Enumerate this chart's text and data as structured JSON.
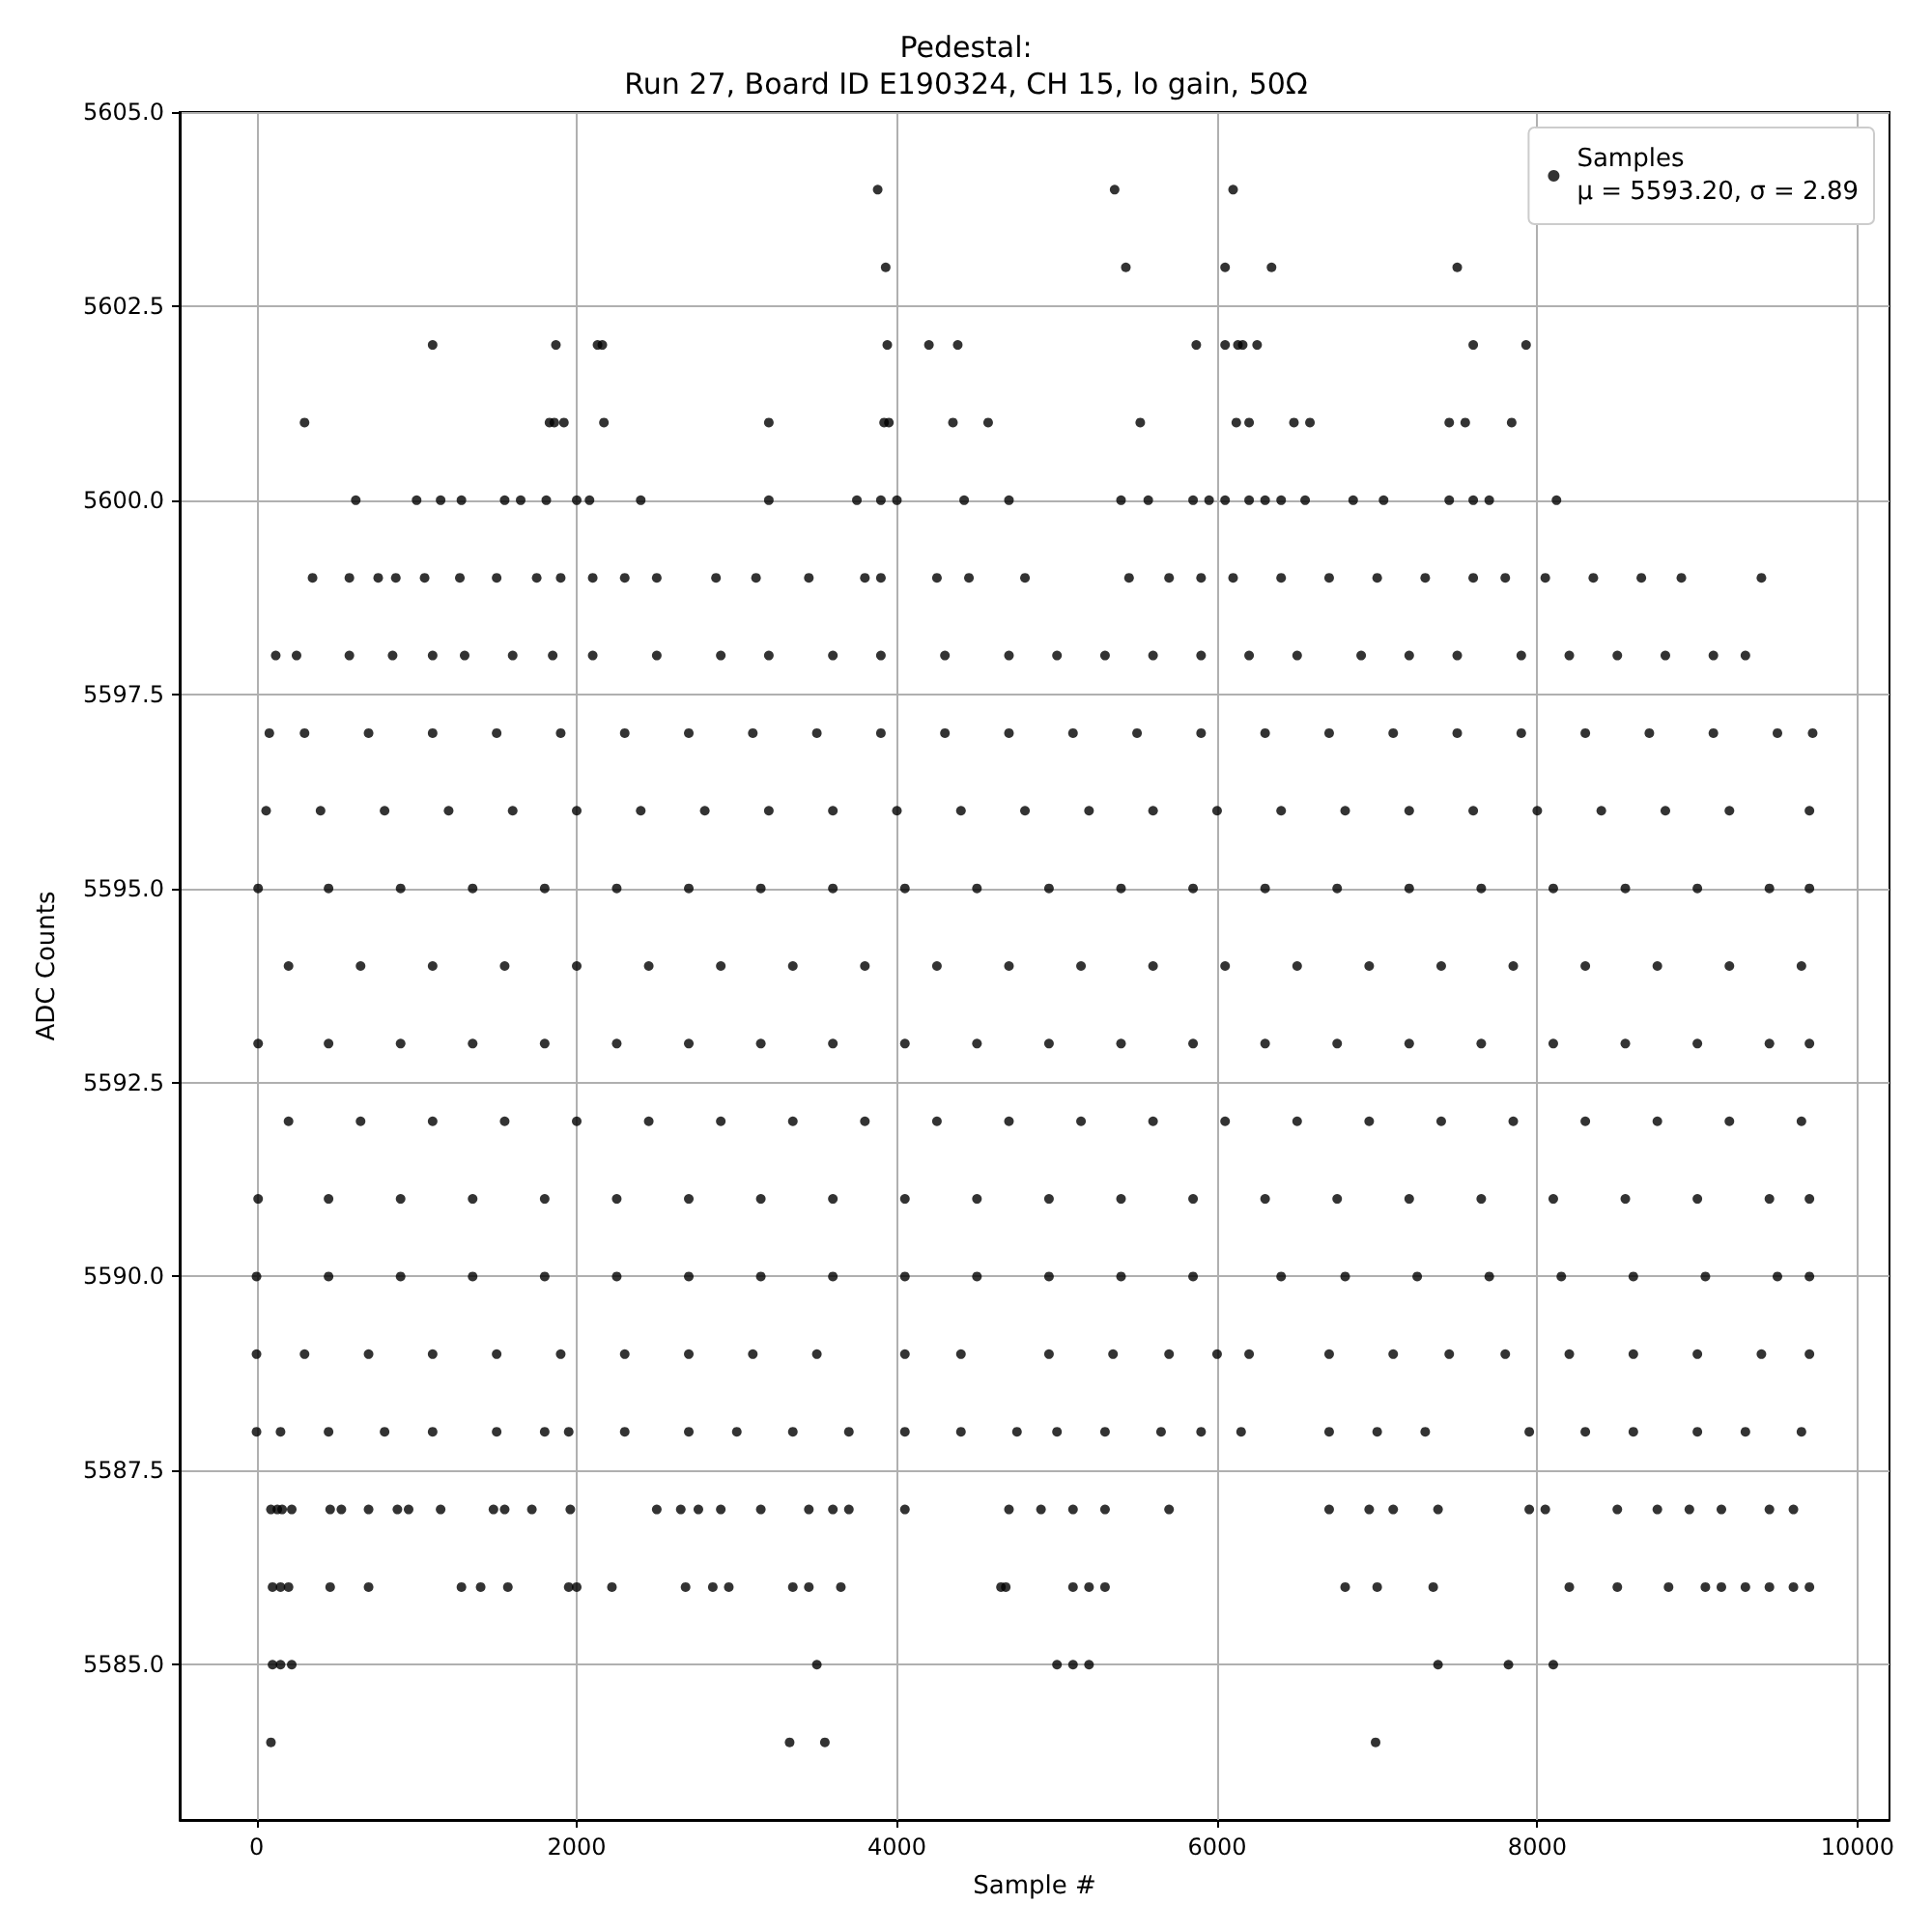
{
  "chart_data": {
    "type": "scatter",
    "title": "Pedestal:",
    "subtitle": "Run 27, Board ID E190324, CH 15, lo gain, 50Ω",
    "xlabel": "Sample #",
    "ylabel": "ADC Counts",
    "xlim": [
      -480,
      10200
    ],
    "ylim": [
      5583,
      5605
    ],
    "xticks": [
      0,
      2000,
      4000,
      6000,
      8000,
      10000
    ],
    "yticks": [
      {
        "value": 5585,
        "label": "5585.0"
      },
      {
        "value": 5587.5,
        "label": "5587.5"
      },
      {
        "value": 5590,
        "label": "5590.0"
      },
      {
        "value": 5592.5,
        "label": "5592.5"
      },
      {
        "value": 5595,
        "label": "5595.0"
      },
      {
        "value": 5597.5,
        "label": "5597.5"
      },
      {
        "value": 5600,
        "label": "5600.0"
      },
      {
        "value": 5602.5,
        "label": "5602.5"
      },
      {
        "value": 5605,
        "label": "5605.0"
      }
    ],
    "grid": true,
    "legend": "top right",
    "marker": "circle",
    "series": [
      {
        "name": "Samples\nμ = 5593.20, σ = 2.89",
        "color": "#000000",
        "x": [
          3880,
          5360,
          6100,
          3930,
          5430,
          6050,
          6340,
          7500,
          1100,
          1870,
          2130,
          2160,
          3940,
          4200,
          4380,
          5870,
          6050,
          6130,
          6160,
          6250,
          7600,
          7930,
          300,
          1830,
          1860,
          1920,
          2170,
          3200,
          3920,
          3950,
          4350,
          4570,
          5520,
          6120,
          6200,
          6480,
          6580,
          7450,
          7550,
          7840,
          620,
          1000,
          1150,
          1280,
          1550,
          1650,
          1810,
          2000,
          2080,
          2400,
          3200,
          3750,
          3900,
          4000,
          4420,
          4700,
          5400,
          5570,
          5850,
          5950,
          6050,
          6200,
          6300,
          6400,
          6550,
          6850,
          7040,
          7450,
          7600,
          7700,
          8120,
          350,
          580,
          760,
          870,
          1050,
          1270,
          1500,
          1750,
          1900,
          2100,
          2300,
          2500,
          2870,
          3120,
          3450,
          3800,
          3900,
          4250,
          4450,
          4800,
          5450,
          5700,
          5900,
          6100,
          6400,
          6700,
          7000,
          7300,
          7600,
          7800,
          8050,
          8350,
          8650,
          8900,
          9400,
          120,
          250,
          580,
          850,
          1100,
          1300,
          1600,
          1850,
          2100,
          2500,
          2900,
          3200,
          3600,
          3900,
          4300,
          4700,
          5000,
          5300,
          5600,
          5900,
          6200,
          6500,
          6900,
          7200,
          7500,
          7900,
          8200,
          8500,
          8800,
          9100,
          9300,
          80,
          300,
          700,
          1100,
          1500,
          1900,
          2300,
          2700,
          3100,
          3500,
          3900,
          4300,
          4700,
          5100,
          5500,
          5900,
          6300,
          6700,
          7100,
          7500,
          7900,
          8300,
          8700,
          9100,
          9500,
          9720,
          60,
          400,
          800,
          1200,
          1600,
          2000,
          2400,
          2800,
          3200,
          3600,
          4000,
          4400,
          4800,
          5200,
          5600,
          6000,
          6400,
          6800,
          7200,
          7600,
          8000,
          8400,
          8800,
          9200,
          9700,
          10,
          450,
          900,
          1350,
          1800,
          2250,
          2700,
          3150,
          3600,
          4050,
          4500,
          4950,
          5400,
          5850,
          6300,
          6750,
          7200,
          7650,
          8100,
          8550,
          9000,
          9450,
          9700,
          200,
          650,
          1100,
          1550,
          2000,
          2450,
          2900,
          3350,
          3800,
          4250,
          4700,
          5150,
          5600,
          6050,
          6500,
          6950,
          7400,
          7850,
          8300,
          8750,
          9200,
          9650,
          10,
          450,
          900,
          1350,
          1800,
          2250,
          2700,
          3150,
          3600,
          4050,
          4500,
          4950,
          5400,
          5850,
          6300,
          6750,
          7200,
          7650,
          8100,
          8550,
          9000,
          9450,
          9700,
          200,
          650,
          1100,
          1550,
          2000,
          2450,
          2900,
          3350,
          3800,
          4250,
          4700,
          5150,
          5600,
          6050,
          6500,
          6950,
          7400,
          7850,
          8300,
          8750,
          9200,
          9650,
          10,
          450,
          900,
          1350,
          1800,
          2250,
          2700,
          3150,
          3600,
          4050,
          4500,
          4950,
          5400,
          5850,
          6300,
          6750,
          7200,
          7650,
          8100,
          8550,
          9000,
          9450,
          9700,
          0,
          450,
          900,
          1350,
          1800,
          2250,
          2700,
          3150,
          3600,
          4050,
          4500,
          4950,
          5400,
          5850,
          6400,
          6800,
          7250,
          7700,
          8150,
          8600,
          9050,
          9500,
          9700,
          0,
          300,
          700,
          1100,
          1500,
          1900,
          2300,
          2700,
          3100,
          3500,
          4050,
          4400,
          4950,
          5350,
          5700,
          6000,
          6200,
          6700,
          7100,
          7450,
          7800,
          8200,
          8600,
          9000,
          9400,
          9700,
          0,
          150,
          450,
          800,
          1100,
          1500,
          1800,
          1950,
          2300,
          2700,
          3000,
          3350,
          3700,
          4050,
          4400,
          4750,
          5000,
          5300,
          5650,
          5900,
          6150,
          6700,
          7000,
          7300,
          7950,
          8300,
          8600,
          9000,
          9300,
          9650,
          90,
          130,
          160,
          220,
          460,
          530,
          700,
          880,
          950,
          1150,
          1480,
          1550,
          1720,
          1960,
          2500,
          2650,
          2760,
          2900,
          3150,
          3450,
          3600,
          3700,
          4050,
          4700,
          4900,
          5100,
          5300,
          5700,
          6700,
          6950,
          7100,
          7380,
          7950,
          8050,
          8500,
          8750,
          8950,
          9150,
          9450,
          9600,
          100,
          150,
          200,
          460,
          700,
          1280,
          1400,
          1570,
          1950,
          2000,
          2220,
          2680,
          2850,
          2950,
          3350,
          3450,
          3650,
          4650,
          4680,
          5100,
          5200,
          5300,
          6800,
          7000,
          7350,
          8200,
          8500,
          8820,
          9050,
          9150,
          9300,
          9450,
          9600,
          9700,
          100,
          150,
          220,
          3500,
          5000,
          5100,
          5200,
          7380,
          7820,
          8100,
          90,
          3330,
          3550,
          6990
        ],
        "values": [
          5604,
          5604,
          5604,
          5603,
          5603,
          5603,
          5603,
          5603,
          5602,
          5602,
          5602,
          5602,
          5602,
          5602,
          5602,
          5602,
          5602,
          5602,
          5602,
          5602,
          5602,
          5602,
          5601,
          5601,
          5601,
          5601,
          5601,
          5601,
          5601,
          5601,
          5601,
          5601,
          5601,
          5601,
          5601,
          5601,
          5601,
          5601,
          5601,
          5601,
          5600,
          5600,
          5600,
          5600,
          5600,
          5600,
          5600,
          5600,
          5600,
          5600,
          5600,
          5600,
          5600,
          5600,
          5600,
          5600,
          5600,
          5600,
          5600,
          5600,
          5600,
          5600,
          5600,
          5600,
          5600,
          5600,
          5600,
          5600,
          5600,
          5600,
          5600,
          5599,
          5599,
          5599,
          5599,
          5599,
          5599,
          5599,
          5599,
          5599,
          5599,
          5599,
          5599,
          5599,
          5599,
          5599,
          5599,
          5599,
          5599,
          5599,
          5599,
          5599,
          5599,
          5599,
          5599,
          5599,
          5599,
          5599,
          5599,
          5599,
          5599,
          5599,
          5599,
          5599,
          5599,
          5599,
          5598,
          5598,
          5598,
          5598,
          5598,
          5598,
          5598,
          5598,
          5598,
          5598,
          5598,
          5598,
          5598,
          5598,
          5598,
          5598,
          5598,
          5598,
          5598,
          5598,
          5598,
          5598,
          5598,
          5598,
          5598,
          5598,
          5598,
          5598,
          5598,
          5598,
          5598,
          5597,
          5597,
          5597,
          5597,
          5597,
          5597,
          5597,
          5597,
          5597,
          5597,
          5597,
          5597,
          5597,
          5597,
          5597,
          5597,
          5597,
          5597,
          5597,
          5597,
          5597,
          5597,
          5597,
          5597,
          5597,
          5597,
          5596,
          5596,
          5596,
          5596,
          5596,
          5596,
          5596,
          5596,
          5596,
          5596,
          5596,
          5596,
          5596,
          5596,
          5596,
          5596,
          5596,
          5596,
          5596,
          5596,
          5596,
          5596,
          5596,
          5596,
          5596,
          5595,
          5595,
          5595,
          5595,
          5595,
          5595,
          5595,
          5595,
          5595,
          5595,
          5595,
          5595,
          5595,
          5595,
          5595,
          5595,
          5595,
          5595,
          5595,
          5595,
          5595,
          5595,
          5595,
          5594,
          5594,
          5594,
          5594,
          5594,
          5594,
          5594,
          5594,
          5594,
          5594,
          5594,
          5594,
          5594,
          5594,
          5594,
          5594,
          5594,
          5594,
          5594,
          5594,
          5594,
          5594,
          5593,
          5593,
          5593,
          5593,
          5593,
          5593,
          5593,
          5593,
          5593,
          5593,
          5593,
          5593,
          5593,
          5593,
          5593,
          5593,
          5593,
          5593,
          5593,
          5593,
          5593,
          5593,
          5593,
          5592,
          5592,
          5592,
          5592,
          5592,
          5592,
          5592,
          5592,
          5592,
          5592,
          5592,
          5592,
          5592,
          5592,
          5592,
          5592,
          5592,
          5592,
          5592,
          5592,
          5592,
          5592,
          5591,
          5591,
          5591,
          5591,
          5591,
          5591,
          5591,
          5591,
          5591,
          5591,
          5591,
          5591,
          5591,
          5591,
          5591,
          5591,
          5591,
          5591,
          5591,
          5591,
          5591,
          5591,
          5591,
          5590,
          5590,
          5590,
          5590,
          5590,
          5590,
          5590,
          5590,
          5590,
          5590,
          5590,
          5590,
          5590,
          5590,
          5590,
          5590,
          5590,
          5590,
          5590,
          5590,
          5590,
          5590,
          5590,
          5589,
          5589,
          5589,
          5589,
          5589,
          5589,
          5589,
          5589,
          5589,
          5589,
          5589,
          5589,
          5589,
          5589,
          5589,
          5589,
          5589,
          5589,
          5589,
          5589,
          5589,
          5589,
          5589,
          5589,
          5589,
          5589,
          5588,
          5588,
          5588,
          5588,
          5588,
          5588,
          5588,
          5588,
          5588,
          5588,
          5588,
          5588,
          5588,
          5588,
          5588,
          5588,
          5588,
          5588,
          5588,
          5588,
          5588,
          5588,
          5588,
          5588,
          5588,
          5588,
          5588,
          5588,
          5588,
          5588,
          5587,
          5587,
          5587,
          5587,
          5587,
          5587,
          5587,
          5587,
          5587,
          5587,
          5587,
          5587,
          5587,
          5587,
          5587,
          5587,
          5587,
          5587,
          5587,
          5587,
          5587,
          5587,
          5587,
          5587,
          5587,
          5587,
          5587,
          5587,
          5587,
          5587,
          5587,
          5587,
          5587,
          5587,
          5587,
          5587,
          5587,
          5587,
          5587,
          5587,
          5586,
          5586,
          5586,
          5586,
          5586,
          5586,
          5586,
          5586,
          5586,
          5586,
          5586,
          5586,
          5586,
          5586,
          5586,
          5586,
          5586,
          5586,
          5586,
          5586,
          5586,
          5586,
          5586,
          5586,
          5586,
          5586,
          5586,
          5586,
          5586,
          5586,
          5586,
          5586,
          5586,
          5586,
          5585,
          5585,
          5585,
          5585,
          5585,
          5585,
          5585,
          5585,
          5585,
          5585,
          5584,
          5584,
          5584,
          5584
        ]
      }
    ]
  }
}
